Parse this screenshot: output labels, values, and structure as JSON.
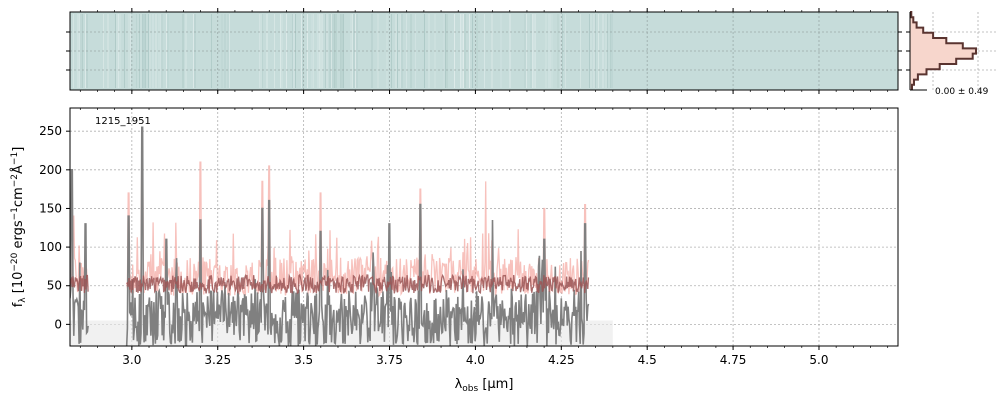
{
  "chart_data": [
    {
      "type": "heatmap",
      "panel": "2d-spectrum",
      "description_of_fill": "uniform teal-grey with faint vertical streaks",
      "fill_color": "#c6dcda",
      "xlim": [
        2.82,
        5.23
      ],
      "grid": true
    },
    {
      "type": "line",
      "panel": "profile",
      "annotation": "0.00 ± 0.49",
      "profile_y": [
        0.02,
        0.05,
        0.1,
        0.2,
        0.35,
        0.55,
        0.8,
        1.0,
        0.95,
        0.7,
        0.45,
        0.25,
        0.12,
        0.06,
        0.03
      ],
      "line_color": "#5a3430",
      "fill_color": "#f7d6cc",
      "grid": true
    },
    {
      "type": "line",
      "panel": "1d-spectrum",
      "label": "1215_1951",
      "xlabel": "λ_obs [μm]",
      "ylabel": "f_λ [10^-20 ergs^-1cm^-2Å^-1]",
      "xlim": [
        2.82,
        5.23
      ],
      "ylim": [
        -28,
        280
      ],
      "xticks": [
        3.0,
        3.25,
        3.5,
        3.75,
        4.0,
        4.25,
        4.5,
        4.75,
        5.0
      ],
      "xtick_labels": [
        "3.0",
        "3.25",
        "3.5",
        "3.75",
        "4.0",
        "4.25",
        "4.5",
        "4.75",
        "5.0"
      ],
      "yticks": [
        0,
        50,
        100,
        150,
        200,
        250
      ],
      "ytick_labels": [
        "0",
        "50",
        "100",
        "150",
        "200",
        "250"
      ],
      "grid": true,
      "series": [
        {
          "role": "data",
          "color": "#808080",
          "segments": [
            [
              2.82,
              2.875
            ],
            [
              2.985,
              4.33
            ]
          ],
          "baseline": 15,
          "noise": 30,
          "peaks": [
            {
              "x": 2.825,
              "y": 200
            },
            {
              "x": 2.865,
              "y": 130
            },
            {
              "x": 2.99,
              "y": 140
            },
            {
              "x": 3.03,
              "y": 255
            },
            {
              "x": 3.1,
              "y": 110
            },
            {
              "x": 3.2,
              "y": 135
            },
            {
              "x": 3.38,
              "y": 150
            },
            {
              "x": 3.4,
              "y": 160
            },
            {
              "x": 3.55,
              "y": 120
            },
            {
              "x": 3.75,
              "y": 130
            },
            {
              "x": 3.84,
              "y": 155
            },
            {
              "x": 4.05,
              "y": 135
            },
            {
              "x": 4.2,
              "y": 110
            },
            {
              "x": 4.32,
              "y": 130
            }
          ]
        },
        {
          "role": "error",
          "color": "#f4a6a0",
          "segments": [
            [
              2.82,
              2.875
            ],
            [
              2.985,
              4.33
            ]
          ],
          "baseline": 62,
          "noise": 25,
          "peaks": [
            {
              "x": 2.83,
              "y": 140
            },
            {
              "x": 2.99,
              "y": 170
            },
            {
              "x": 3.03,
              "y": 230
            },
            {
              "x": 3.2,
              "y": 210
            },
            {
              "x": 3.38,
              "y": 185
            },
            {
              "x": 3.4,
              "y": 205
            },
            {
              "x": 3.55,
              "y": 170
            },
            {
              "x": 3.84,
              "y": 175
            },
            {
              "x": 4.03,
              "y": 185
            },
            {
              "x": 4.2,
              "y": 150
            },
            {
              "x": 4.32,
              "y": 155
            }
          ]
        },
        {
          "role": "model",
          "color": "#9b5555",
          "segments": [
            [
              2.82,
              2.875
            ],
            [
              2.985,
              4.33
            ]
          ],
          "baseline": 52,
          "noise": 12
        }
      ],
      "shaded_band": {
        "x0": 2.82,
        "x1": 4.4,
        "y0": -28,
        "y1": 5,
        "color": "#e8e8e8"
      }
    }
  ]
}
